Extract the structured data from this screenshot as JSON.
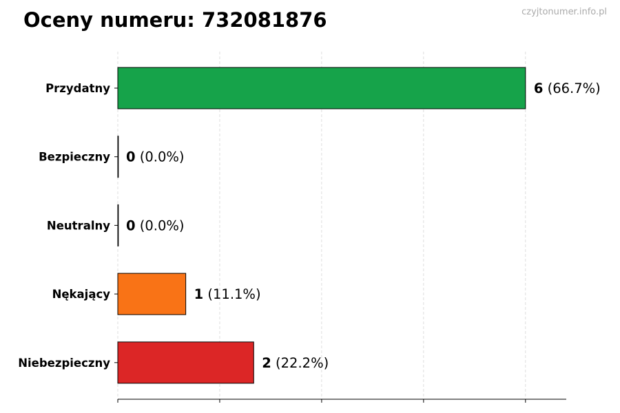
{
  "title": "Oceny numeru: 732081876",
  "watermark": "czyjtonumer.info.pl",
  "chart_data": {
    "type": "bar",
    "orientation": "horizontal",
    "title": "Oceny numeru: 732081876",
    "categories": [
      "Przydatny",
      "Bezpieczny",
      "Neutralny",
      "Nękający",
      "Niebezpieczny"
    ],
    "values": [
      6,
      0,
      0,
      1,
      2
    ],
    "percent_labels": [
      "(66.7%)",
      "(0.0%)",
      "(0.0%)",
      "(11.1%)",
      "(22.2%)"
    ],
    "colors": [
      "#16a34a",
      "#16a34a",
      "#9ca3af",
      "#f97316",
      "#dc2626"
    ],
    "xlim": [
      0,
      6.6
    ],
    "xticks": [
      0,
      1.5,
      3,
      4.5,
      6
    ],
    "xtick_labels_shown": false,
    "grid": "x-dashed",
    "xlabel": "",
    "ylabel": ""
  }
}
